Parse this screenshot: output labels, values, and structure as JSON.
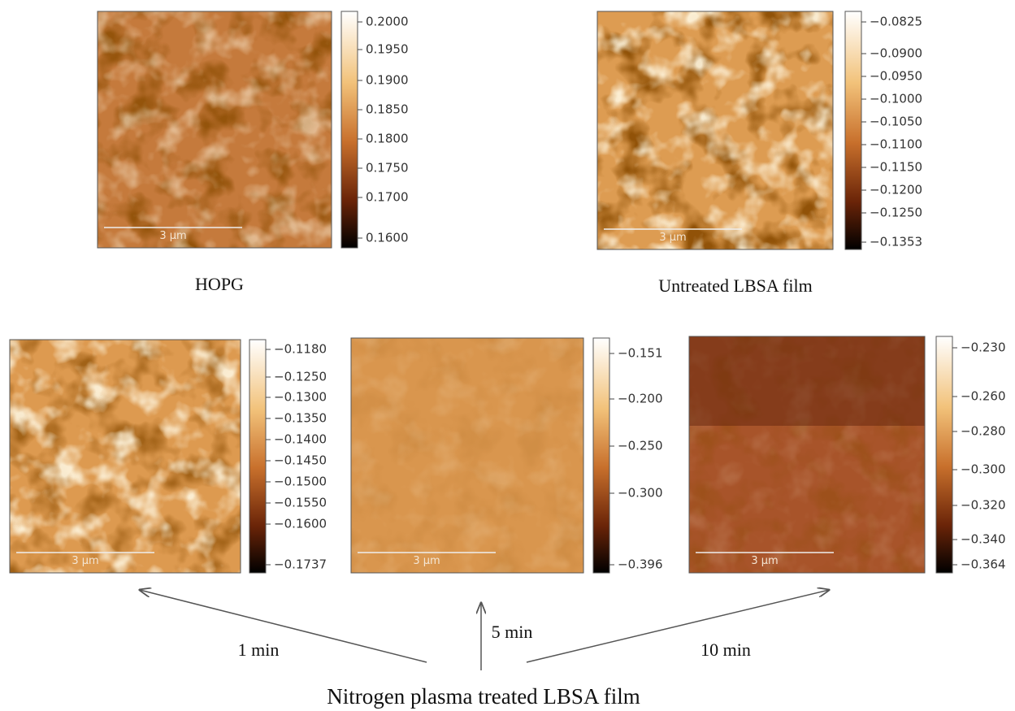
{
  "panels": [
    {
      "scale_bar": "3 µm",
      "colorbar_ticks": [
        "0.2000",
        "0.1950",
        "0.1900",
        "0.1850",
        "0.1800",
        "0.1750",
        "0.1700",
        "0.1600"
      ],
      "caption": "HOPG"
    },
    {
      "scale_bar": "3 µm",
      "colorbar_ticks": [
        "−0.0825",
        "−0.0900",
        "−0.0950",
        "−0.1000",
        "−0.1050",
        "−0.1100",
        "−0.1150",
        "−0.1200",
        "−0.1250",
        "−0.1353"
      ],
      "caption": "Untreated LBSA film"
    },
    {
      "scale_bar": "3 µm",
      "colorbar_ticks": [
        "−0.1180",
        "−0.1250",
        "−0.1300",
        "−0.1350",
        "−0.1400",
        "−0.1450",
        "−0.1500",
        "−0.1550",
        "−0.1600",
        "−0.1737"
      ]
    },
    {
      "scale_bar": "3 µm",
      "colorbar_ticks": [
        "−0.151",
        "−0.200",
        "−0.250",
        "−0.300",
        "−0.396"
      ]
    },
    {
      "scale_bar": "3 µm",
      "colorbar_ticks": [
        "−0.230",
        "−0.260",
        "−0.280",
        "−0.300",
        "−0.320",
        "−0.340",
        "−0.364"
      ]
    }
  ],
  "arrows": [
    {
      "label": "1 min"
    },
    {
      "label": "5 min"
    },
    {
      "label": "10 min"
    }
  ],
  "caption": "Nitrogen plasma treated LBSA film"
}
